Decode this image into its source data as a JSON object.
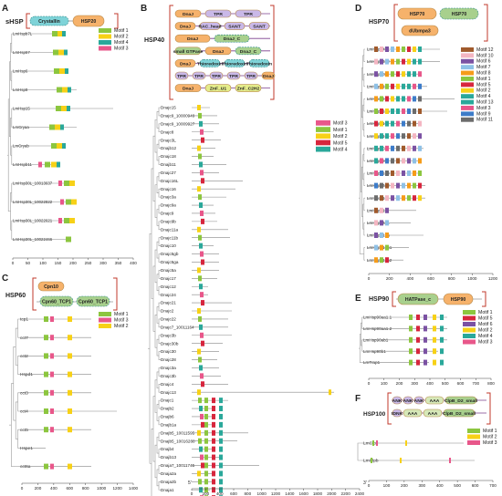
{
  "colors": {
    "motif_green": "#8cc63f",
    "motif_yellow": "#f7d117",
    "motif_teal": "#2aa89a",
    "motif_pink": "#e8578a",
    "motif_red": "#d7263d",
    "motif_orange": "#f59c1a",
    "motif_purple": "#7b52a3",
    "motif_blue": "#3d7cc9",
    "motif_gray": "#6c6c6c",
    "motif_brown": "#a05a2c",
    "motif_lightblue": "#8fc1e6",
    "motif_lightpink": "#f4b6c2",
    "domain_orange": "#f6b26b",
    "domain_cyan": "#7fd3d8",
    "domain_green": "#a8d08d",
    "domain_lavender": "#c9b8e8",
    "domain_border": "#c0392b",
    "tree": "#9a9a9a"
  },
  "panels": {
    "A": {
      "letter": "A",
      "title": "sHSP",
      "domains": [
        "Crystallin",
        "HSP20"
      ],
      "genes": [
        "LmHspb7L",
        "LmHsp67",
        "LmHsp6",
        "LmHsp8",
        "LmHsp15",
        "LmCryaa",
        "LmCryab",
        "LmHspb11",
        "LmHsp30L_10013637",
        "LmHsp30L_10022822",
        "LmHsp30L_10022621",
        "LmHsp30L_10022466"
      ],
      "legend": [
        "Motif 1",
        "Motif 2",
        "Motif 4",
        "Motif 3"
      ],
      "axis": [
        "0",
        "50",
        "100",
        "150",
        "200",
        "250",
        "300",
        "350",
        "400"
      ]
    },
    "B": {
      "letter": "B",
      "title": "HSP40",
      "domain_rows": [
        [
          "DnaJ",
          "TPR",
          "TPR"
        ],
        [
          "DnaJ",
          "RAC_head",
          "SANT",
          "SANT"
        ],
        [
          "DnaJ",
          "DnaJ_C"
        ],
        [
          "small GTPase",
          "DnaJ",
          "DnaJ_C"
        ],
        [
          "DnaJ",
          "Thioredoxin",
          "Thioredoxin",
          "Thioredoxin"
        ],
        [
          "TPR",
          "TPR",
          "TPR",
          "TPR",
          "TPR",
          "DnaJ"
        ],
        [
          "DnaJ",
          "ZnF_U1",
          "ZnF_C2H2"
        ]
      ],
      "genes": [
        "Dnajc15",
        "Dnajc9_10000949",
        "Dnajc9_10009927",
        "Dnajc8",
        "Dnajc3L",
        "Dnajb12",
        "Dnajc18",
        "Dnajb11",
        "Dnajc27",
        "Dnajc16L",
        "Dnajc16",
        "Dnajc3a",
        "Dnajc9a",
        "Dnajc9",
        "Dnajc9b",
        "Dnajc11a",
        "Dnajc11b",
        "Dnajc10",
        "Dnajc5gb",
        "Dnajc5ga",
        "Dnajc5a",
        "Dnajc17",
        "Dnajc12",
        "Dnajc24",
        "Dnajc21",
        "Dnajc2",
        "Dnajc22",
        "Dnajc7_10011164",
        "Dnajc3b",
        "Dnajc30b",
        "Dnajc30",
        "Dnajc28",
        "Dnajc3a",
        "Dnajc3b",
        "Dnajc4",
        "Dnajc13",
        "Dnajc1",
        "Dnajb2",
        "Dnajb6",
        "Dnajb1a",
        "Dnajb5_10011595",
        "Dnajb5_10016268",
        "Dnajb4",
        "Dnajb13",
        "Dnaja7_10011745",
        "Dnaja2a",
        "Dnaja2b",
        "Dnaja1",
        "Dnajc19"
      ],
      "legend": [
        "Motif 3",
        "Motif 1",
        "Motif 2",
        "Motif 5",
        "Motif 4"
      ],
      "axis": [
        "0",
        "200",
        "400",
        "600",
        "800",
        "1000",
        "1200",
        "1400",
        "1600",
        "1800",
        "2000",
        "2200",
        "2400"
      ],
      "end5": "5'",
      "end3": "3'"
    },
    "C": {
      "letter": "C",
      "title": "HSP60",
      "domains": [
        "Cpn10",
        "Cpn60_TCP1",
        "Cpn60_TCP1"
      ],
      "genes": [
        "tcp1",
        "cct7",
        "cct2",
        "Hspd1",
        "cct3",
        "cct4",
        "cct5",
        "Hspe1",
        "cct6a"
      ],
      "legend": [
        "Motif 1",
        "Motif 3",
        "Motif 2"
      ],
      "axis": [
        "0",
        "200",
        "400",
        "600",
        "800",
        "1000",
        "1200",
        "1400"
      ]
    },
    "D": {
      "letter": "D",
      "title": "HSP70",
      "domains": [
        "HSP70",
        "HSP70",
        "dUbmpa3"
      ],
      "genes": [
        "LmHspa4b1",
        "LmHspa4b2",
        "LmHspa8",
        "LmHspa14",
        "LmHsc70",
        "LmHspa14a",
        "LmHspa1.1",
        "LmHspa1.2",
        "LmHspa5",
        "LmHspa9",
        "LmHspa14b",
        "LmHspa4a2",
        "LmHyou1",
        "LmHspa13",
        "LmHspa4a1",
        "LmHspa12a",
        "LmHspa12b1",
        "LmHspa12b2"
      ],
      "legend": [
        "Motif 12",
        "Motif 10",
        "Motif 6",
        "Motif 7",
        "Motif 8",
        "Motif 1",
        "Motif 5",
        "Motif 2",
        "Motif 4",
        "Motif 13",
        "Motif 3",
        "Motif 9",
        "Motif 11"
      ],
      "axis": [
        "0",
        "200",
        "400",
        "600",
        "800",
        "1000",
        "1200"
      ]
    },
    "E": {
      "letter": "E",
      "title": "HSP90",
      "domains": [
        "HATPase_c",
        "HSP90"
      ],
      "genes": [
        "LmHsp90aa1.1",
        "LmHsp90aa1.2",
        "LmHsp90ab1",
        "LmHsp90b1",
        "LmTrap1"
      ],
      "legend": [
        "Motif 1",
        "Motif 5",
        "Motif 6",
        "Motif 2",
        "Motif 4",
        "Motif 3"
      ],
      "axis": [
        "0",
        "100",
        "200",
        "300",
        "400",
        "500",
        "600",
        "700",
        "800"
      ]
    },
    "F": {
      "letter": "F",
      "title": "HSP100",
      "domain_rows": [
        [
          "ANK",
          "ANK",
          "ANK",
          "AAA",
          "ClpB_D2_small"
        ],
        [
          "tDNK",
          "AAA",
          "AAA",
          "ClpB_D2_small"
        ]
      ],
      "genes": [
        "LmClpx",
        "LmClpb"
      ],
      "legend": [
        "Motif 1",
        "Motif 2",
        "Motif 3"
      ],
      "axis": [
        "0",
        "100",
        "200",
        "300",
        "400",
        "500",
        "600",
        "700"
      ]
    }
  }
}
